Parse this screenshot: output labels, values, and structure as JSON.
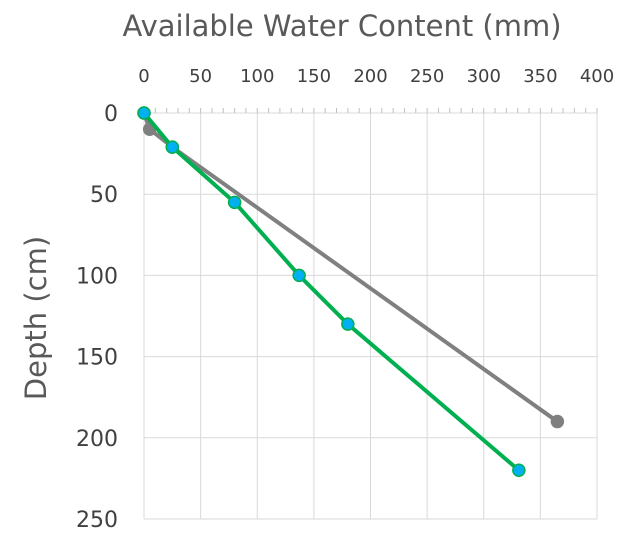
{
  "chart_data": {
    "type": "line",
    "xlabel": "Available Water Content (mm)",
    "ylabel": "Depth (cm)",
    "x_axis_position": "top",
    "y_axis_reversed": true,
    "xlim": [
      0,
      400
    ],
    "ylim": [
      0,
      250
    ],
    "x_ticks": [
      "0",
      "50",
      "100",
      "150",
      "200",
      "250",
      "300",
      "350",
      "400"
    ],
    "y_ticks": [
      "0",
      "50",
      "100",
      "150",
      "200",
      "250"
    ],
    "grid": true,
    "series": [
      {
        "color": "#808080",
        "marker_color": "#7f7f7f",
        "points": [
          {
            "x": 0,
            "y": 0
          },
          {
            "x": 5,
            "y": 10
          },
          {
            "x": 25,
            "y": 21
          },
          {
            "x": 365,
            "y": 190
          }
        ]
      },
      {
        "color": "#00b050",
        "marker_color": "#00b0f0",
        "points": [
          {
            "x": 0,
            "y": 0
          },
          {
            "x": 25,
            "y": 21
          },
          {
            "x": 80,
            "y": 55
          },
          {
            "x": 137,
            "y": 100
          },
          {
            "x": 180,
            "y": 130
          },
          {
            "x": 331,
            "y": 220
          }
        ]
      }
    ]
  }
}
